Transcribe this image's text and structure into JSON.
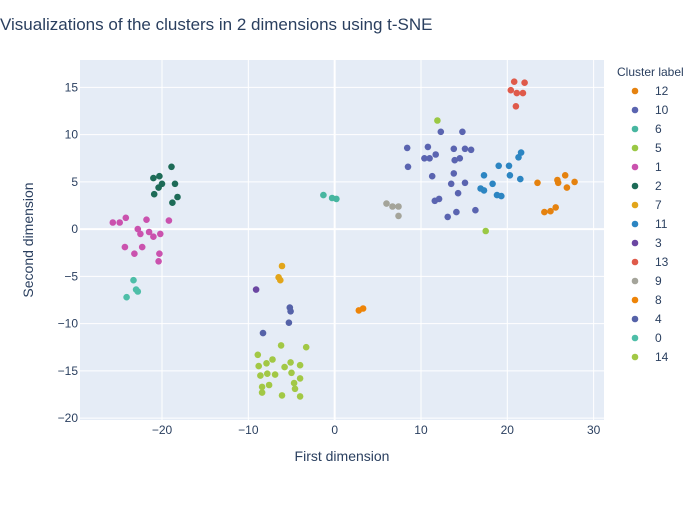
{
  "chart_data": {
    "type": "scatter",
    "title": "Visualizations of the clusters in 2 dimensions using t-SNE",
    "xlabel": "First dimension",
    "ylabel": "Second dimension",
    "xlim": [
      -29.5,
      31.2
    ],
    "ylim": [
      -20.2,
      17.9
    ],
    "x_ticks": [
      -20,
      -10,
      0,
      10,
      20,
      30
    ],
    "x_tick_labels": [
      "−20",
      "−10",
      "0",
      "10",
      "20",
      "30"
    ],
    "y_ticks": [
      15,
      10,
      5,
      0,
      -5,
      -10,
      -15,
      -20
    ],
    "y_tick_labels": [
      "15",
      "10",
      "5",
      "0",
      "−5",
      "−10",
      "−15",
      "−20"
    ],
    "grid": true,
    "legend_title": "Cluster label",
    "legend_position": "right",
    "series": [
      {
        "name": "12",
        "color": "#e5820f",
        "points": [
          [
            23.5,
            4.9
          ],
          [
            24.3,
            1.8
          ],
          [
            25.0,
            1.9
          ],
          [
            25.6,
            2.3
          ],
          [
            25.8,
            5.2
          ],
          [
            25.9,
            4.9
          ],
          [
            26.7,
            5.7
          ],
          [
            26.9,
            4.4
          ],
          [
            27.8,
            5.0
          ]
        ]
      },
      {
        "name": "10",
        "color": "#5a64b0",
        "points": [
          [
            8.4,
            8.6
          ],
          [
            8.5,
            6.6
          ],
          [
            10.4,
            7.5
          ],
          [
            10.8,
            8.7
          ],
          [
            11.0,
            7.5
          ],
          [
            11.3,
            5.6
          ],
          [
            11.7,
            7.9
          ],
          [
            12.3,
            10.3
          ],
          [
            11.6,
            3.0
          ],
          [
            12.1,
            3.2
          ],
          [
            13.1,
            1.3
          ],
          [
            13.5,
            4.8
          ],
          [
            13.8,
            8.5
          ],
          [
            13.8,
            5.9
          ],
          [
            13.9,
            7.3
          ],
          [
            14.5,
            7.5
          ],
          [
            14.3,
            3.8
          ],
          [
            14.8,
            10.3
          ],
          [
            15.1,
            8.5
          ],
          [
            15.1,
            4.9
          ],
          [
            15.8,
            8.4
          ],
          [
            16.3,
            2.0
          ],
          [
            14.1,
            1.8
          ]
        ]
      },
      {
        "name": "6",
        "color": "#47b6a0",
        "points": [
          [
            -1.3,
            3.6
          ],
          [
            -0.3,
            3.3
          ],
          [
            0.2,
            3.2
          ]
        ]
      },
      {
        "name": "5",
        "color": "#9ac844",
        "points": [
          [
            11.9,
            11.5
          ],
          [
            17.5,
            -0.2
          ]
        ]
      },
      {
        "name": "1",
        "color": "#ca52ae",
        "points": [
          [
            -25.7,
            0.7
          ],
          [
            -24.9,
            0.7
          ],
          [
            -24.2,
            1.2
          ],
          [
            -22.8,
            0.0
          ],
          [
            -22.5,
            -0.5
          ],
          [
            -22.3,
            -1.9
          ],
          [
            -21.5,
            -0.3
          ],
          [
            -21.0,
            -0.8
          ],
          [
            -20.2,
            -0.5
          ],
          [
            -21.8,
            1.0
          ],
          [
            -24.3,
            -1.9
          ],
          [
            -23.2,
            -2.6
          ],
          [
            -20.3,
            -2.6
          ],
          [
            -20.4,
            -3.4
          ],
          [
            -19.2,
            0.9
          ]
        ]
      },
      {
        "name": "2",
        "color": "#1d6b57",
        "points": [
          [
            -21.0,
            5.4
          ],
          [
            -20.3,
            5.6
          ],
          [
            -20.4,
            4.4
          ],
          [
            -20.0,
            4.8
          ],
          [
            -18.9,
            6.6
          ],
          [
            -18.5,
            4.8
          ],
          [
            -18.2,
            3.4
          ],
          [
            -18.8,
            2.8
          ],
          [
            -20.9,
            3.7
          ]
        ]
      },
      {
        "name": "7",
        "color": "#e2a51a",
        "points": [
          [
            -6.5,
            -5.1
          ],
          [
            -6.3,
            -5.4
          ],
          [
            -6.1,
            -3.9
          ]
        ]
      },
      {
        "name": "11",
        "color": "#2c85c2",
        "points": [
          [
            16.9,
            4.3
          ],
          [
            17.3,
            5.7
          ],
          [
            17.3,
            4.1
          ],
          [
            18.3,
            4.8
          ],
          [
            18.8,
            3.6
          ],
          [
            19.3,
            3.5
          ],
          [
            19.0,
            6.7
          ],
          [
            20.2,
            6.7
          ],
          [
            20.3,
            5.7
          ],
          [
            21.3,
            7.6
          ],
          [
            21.6,
            8.1
          ],
          [
            21.5,
            5.3
          ]
        ]
      },
      {
        "name": "3",
        "color": "#6b46a2",
        "points": [
          [
            -9.1,
            -6.4
          ]
        ]
      },
      {
        "name": "13",
        "color": "#df5a4a",
        "points": [
          [
            20.4,
            14.7
          ],
          [
            20.8,
            15.6
          ],
          [
            21.1,
            14.4
          ],
          [
            21.0,
            13.0
          ],
          [
            21.8,
            14.4
          ],
          [
            22.0,
            15.5
          ]
        ]
      },
      {
        "name": "9",
        "color": "#a4a49a",
        "points": [
          [
            6.0,
            2.7
          ],
          [
            6.7,
            2.4
          ],
          [
            7.4,
            2.4
          ],
          [
            7.4,
            1.4
          ]
        ]
      },
      {
        "name": "8",
        "color": "#ee8407",
        "points": [
          [
            2.8,
            -8.6
          ],
          [
            3.3,
            -8.4
          ]
        ]
      },
      {
        "name": "4",
        "color": "#5562a8",
        "points": [
          [
            -8.3,
            -11.0
          ],
          [
            -5.2,
            -8.3
          ],
          [
            -5.1,
            -8.7
          ],
          [
            -5.3,
            -9.9
          ]
        ]
      },
      {
        "name": "0",
        "color": "#4ebea8",
        "points": [
          [
            -23.3,
            -5.4
          ],
          [
            -23.0,
            -6.4
          ],
          [
            -22.8,
            -6.6
          ],
          [
            -24.1,
            -7.2
          ]
        ]
      },
      {
        "name": "14",
        "color": "#a2c845",
        "points": [
          [
            -8.9,
            -13.3
          ],
          [
            -8.8,
            -14.5
          ],
          [
            -8.6,
            -15.5
          ],
          [
            -8.4,
            -17.3
          ],
          [
            -7.9,
            -14.2
          ],
          [
            -7.8,
            -15.3
          ],
          [
            -7.6,
            -16.5
          ],
          [
            -7.2,
            -13.8
          ],
          [
            -6.9,
            -15.4
          ],
          [
            -6.2,
            -12.3
          ],
          [
            -6.1,
            -17.6
          ],
          [
            -5.8,
            -14.6
          ],
          [
            -5.1,
            -14.1
          ],
          [
            -5.0,
            -15.2
          ],
          [
            -4.7,
            -16.3
          ],
          [
            -4.6,
            -16.9
          ],
          [
            -4.0,
            -14.4
          ],
          [
            -4.0,
            -15.8
          ],
          [
            -4.0,
            -17.7
          ],
          [
            -3.3,
            -12.5
          ],
          [
            -8.4,
            -16.7
          ]
        ]
      }
    ]
  }
}
